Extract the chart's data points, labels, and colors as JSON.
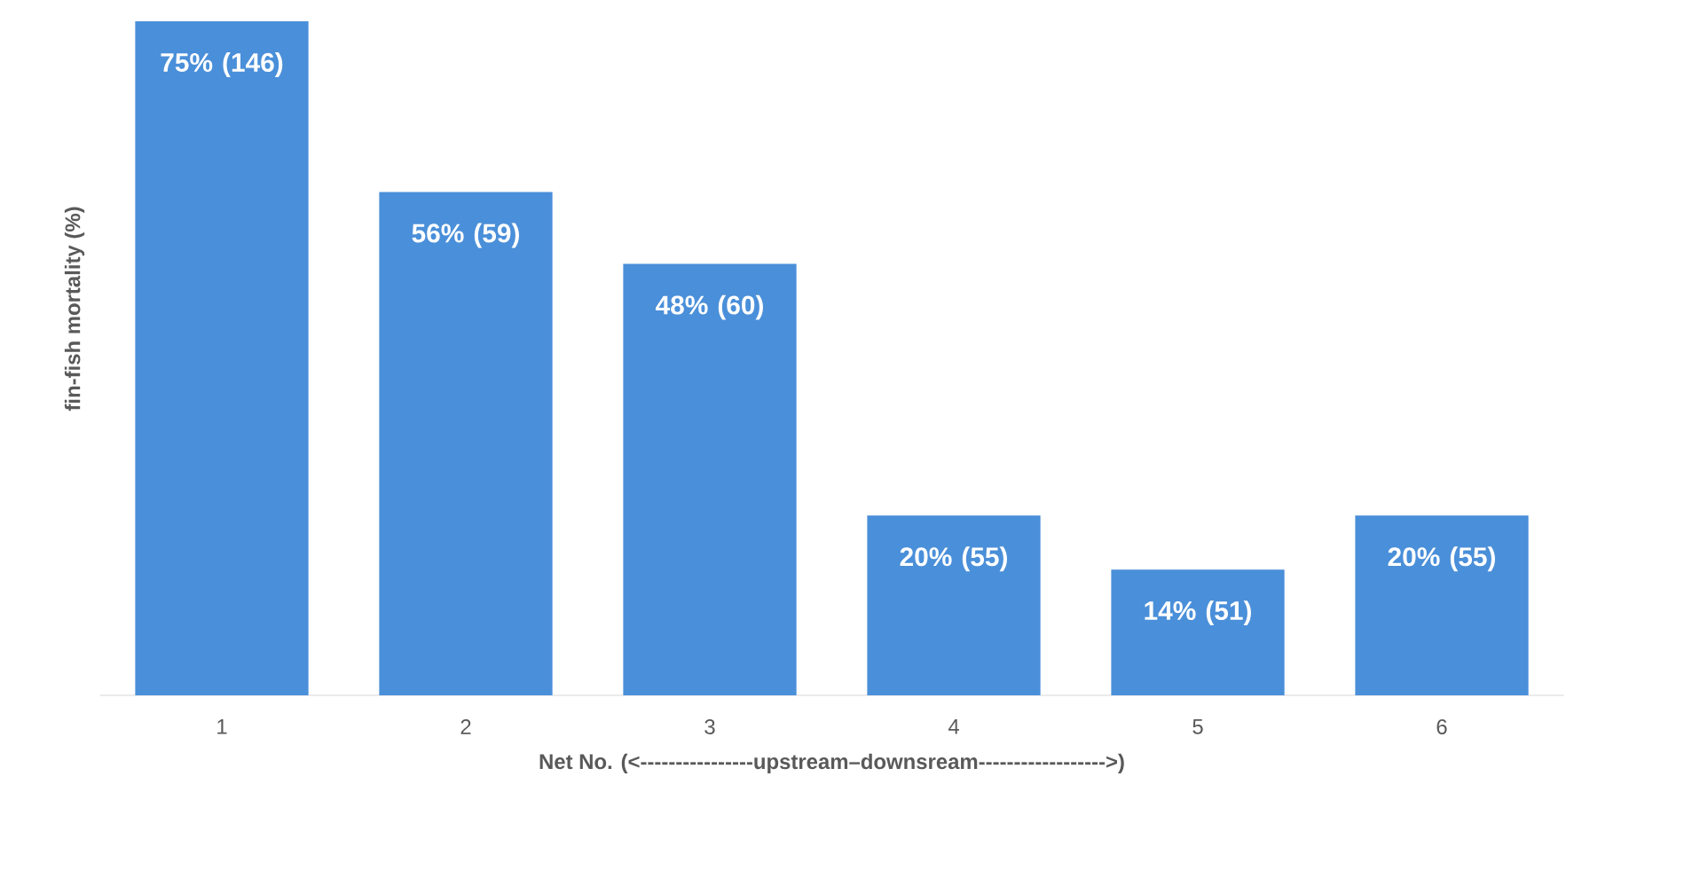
{
  "chart_data": {
    "type": "bar",
    "xlabel": "Net No. (<----------------upstream–downsream------------------>)",
    "ylabel": "fin-fish mortality (%)",
    "categories": [
      "1",
      "2",
      "3",
      "4",
      "5",
      "6"
    ],
    "values": [
      75,
      56,
      48,
      20,
      14,
      20
    ],
    "value_labels": [
      "75% (146)",
      "56% (59)",
      "48% (60)",
      "20% (55)",
      "14% (51)",
      "20% (55)"
    ],
    "color": "#4a8fd9",
    "ylim": [
      0,
      75
    ],
    "tick_labels": "x"
  }
}
